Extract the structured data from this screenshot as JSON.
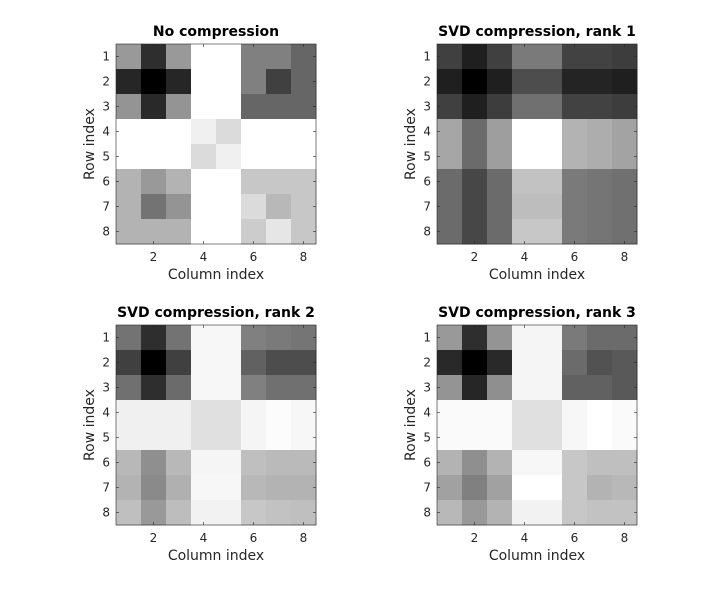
{
  "figure": {
    "background": "#ffffff"
  },
  "chart_data": [
    {
      "type": "heatmap",
      "title": "No compression",
      "xlabel": "Column index",
      "ylabel": "Row index",
      "x_ticks": [
        2,
        4,
        6,
        8
      ],
      "y_ticks": [
        1,
        2,
        3,
        4,
        5,
        6,
        7,
        8
      ],
      "xlim": [
        0.5,
        8.5
      ],
      "ylim": [
        0.5,
        8.5
      ],
      "y_direction": "reverse",
      "colormap": "gray",
      "clim": [
        0,
        1
      ],
      "grid": false,
      "values": [
        [
          0.6,
          0.18,
          0.6,
          1.0,
          1.0,
          0.5,
          0.5,
          0.4
        ],
        [
          0.15,
          0.0,
          0.15,
          1.0,
          1.0,
          0.5,
          0.25,
          0.4
        ],
        [
          0.58,
          0.16,
          0.58,
          1.0,
          1.0,
          0.4,
          0.4,
          0.4
        ],
        [
          1.0,
          1.0,
          1.0,
          0.94,
          0.86,
          1.0,
          1.0,
          1.0
        ],
        [
          1.0,
          1.0,
          1.0,
          0.86,
          0.94,
          1.0,
          1.0,
          1.0
        ],
        [
          0.7,
          0.6,
          0.7,
          1.0,
          1.0,
          0.78,
          0.78,
          0.78
        ],
        [
          0.7,
          0.45,
          0.58,
          1.0,
          1.0,
          0.86,
          0.72,
          0.78
        ],
        [
          0.7,
          0.7,
          0.7,
          1.0,
          1.0,
          0.8,
          0.9,
          0.78
        ]
      ]
    },
    {
      "type": "heatmap",
      "title": "SVD compression, rank 1",
      "xlabel": "Column index",
      "ylabel": "Row index",
      "x_ticks": [
        2,
        4,
        6,
        8
      ],
      "y_ticks": [
        1,
        2,
        3,
        4,
        5,
        6,
        7,
        8
      ],
      "xlim": [
        0.5,
        8.5
      ],
      "ylim": [
        0.5,
        8.5
      ],
      "y_direction": "reverse",
      "colormap": "gray",
      "clim": [
        0,
        1
      ],
      "grid": false,
      "values": [
        [
          0.25,
          0.12,
          0.25,
          0.48,
          0.48,
          0.26,
          0.26,
          0.24
        ],
        [
          0.12,
          0.0,
          0.12,
          0.3,
          0.3,
          0.14,
          0.14,
          0.12
        ],
        [
          0.25,
          0.12,
          0.24,
          0.44,
          0.44,
          0.26,
          0.26,
          0.24
        ],
        [
          0.65,
          0.42,
          0.62,
          1.0,
          1.0,
          0.7,
          0.68,
          0.64
        ],
        [
          0.65,
          0.42,
          0.62,
          1.0,
          1.0,
          0.7,
          0.68,
          0.64
        ],
        [
          0.42,
          0.28,
          0.42,
          0.76,
          0.76,
          0.48,
          0.46,
          0.44
        ],
        [
          0.42,
          0.28,
          0.42,
          0.74,
          0.74,
          0.48,
          0.46,
          0.44
        ],
        [
          0.42,
          0.28,
          0.42,
          0.78,
          0.78,
          0.48,
          0.46,
          0.44
        ]
      ]
    },
    {
      "type": "heatmap",
      "title": "SVD compression, rank 2",
      "xlabel": "Column index",
      "ylabel": "Row index",
      "x_ticks": [
        2,
        4,
        6,
        8
      ],
      "y_ticks": [
        1,
        2,
        3,
        4,
        5,
        6,
        7,
        8
      ],
      "xlim": [
        0.5,
        8.5
      ],
      "ylim": [
        0.5,
        8.5
      ],
      "y_direction": "reverse",
      "colormap": "gray",
      "clim": [
        0,
        1
      ],
      "grid": false,
      "values": [
        [
          0.45,
          0.18,
          0.45,
          0.97,
          0.97,
          0.5,
          0.48,
          0.46
        ],
        [
          0.25,
          0.0,
          0.25,
          0.97,
          0.97,
          0.38,
          0.3,
          0.3
        ],
        [
          0.44,
          0.18,
          0.42,
          0.97,
          0.97,
          0.5,
          0.44,
          0.44
        ],
        [
          0.94,
          0.94,
          0.94,
          0.88,
          0.88,
          0.96,
          0.99,
          0.97
        ],
        [
          0.94,
          0.94,
          0.94,
          0.88,
          0.88,
          0.96,
          0.99,
          0.97
        ],
        [
          0.72,
          0.56,
          0.72,
          0.96,
          0.96,
          0.75,
          0.73,
          0.73
        ],
        [
          0.7,
          0.54,
          0.69,
          0.97,
          0.97,
          0.72,
          0.7,
          0.7
        ],
        [
          0.75,
          0.6,
          0.74,
          0.95,
          0.95,
          0.78,
          0.76,
          0.75
        ]
      ]
    },
    {
      "type": "heatmap",
      "title": "SVD compression, rank 3",
      "xlabel": "Column index",
      "ylabel": "Row index",
      "x_ticks": [
        2,
        4,
        6,
        8
      ],
      "y_ticks": [
        1,
        2,
        3,
        4,
        5,
        6,
        7,
        8
      ],
      "xlim": [
        0.5,
        8.5
      ],
      "ylim": [
        0.5,
        8.5
      ],
      "y_direction": "reverse",
      "colormap": "gray",
      "clim": [
        0,
        1
      ],
      "grid": false,
      "values": [
        [
          0.6,
          0.18,
          0.58,
          0.96,
          0.96,
          0.48,
          0.42,
          0.42
        ],
        [
          0.16,
          0.0,
          0.16,
          0.96,
          0.96,
          0.42,
          0.32,
          0.35
        ],
        [
          0.58,
          0.15,
          0.56,
          0.96,
          0.96,
          0.38,
          0.38,
          0.35
        ],
        [
          0.98,
          0.98,
          0.98,
          0.88,
          0.88,
          0.97,
          1.0,
          0.98
        ],
        [
          0.98,
          0.98,
          0.98,
          0.88,
          0.88,
          0.97,
          1.0,
          0.98
        ],
        [
          0.7,
          0.56,
          0.7,
          0.97,
          0.97,
          0.78,
          0.75,
          0.75
        ],
        [
          0.63,
          0.5,
          0.63,
          1.0,
          1.0,
          0.78,
          0.7,
          0.72
        ],
        [
          0.72,
          0.6,
          0.7,
          0.95,
          0.95,
          0.78,
          0.76,
          0.76
        ]
      ]
    }
  ]
}
